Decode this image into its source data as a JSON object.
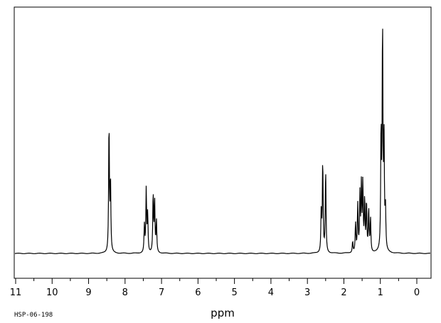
{
  "sample_code": "HSP-06-198",
  "chart_data": {
    "type": "line",
    "xlabel": "ppm",
    "ylabel": "",
    "title": "",
    "x_reversed": true,
    "xlim": [
      11,
      0
    ],
    "ylim": [
      0,
      100
    ],
    "grid": false,
    "legend": "none",
    "tick_labels": [
      "11",
      "10",
      "9",
      "8",
      "7",
      "6",
      "5",
      "4",
      "3",
      "2",
      "1",
      "0"
    ],
    "peaks": [
      {
        "ppm": 8.44,
        "height": 58
      },
      {
        "ppm": 8.4,
        "height": 32
      },
      {
        "ppm": 7.47,
        "height": 12
      },
      {
        "ppm": 7.42,
        "height": 28
      },
      {
        "ppm": 7.38,
        "height": 17
      },
      {
        "ppm": 7.23,
        "height": 26
      },
      {
        "ppm": 7.19,
        "height": 23
      },
      {
        "ppm": 7.14,
        "height": 14
      },
      {
        "ppm": 2.62,
        "height": 19
      },
      {
        "ppm": 2.58,
        "height": 41
      },
      {
        "ppm": 2.5,
        "height": 37
      },
      {
        "ppm": 1.76,
        "height": 5
      },
      {
        "ppm": 1.68,
        "height": 13
      },
      {
        "ppm": 1.62,
        "height": 21
      },
      {
        "ppm": 1.56,
        "height": 25
      },
      {
        "ppm": 1.52,
        "height": 29
      },
      {
        "ppm": 1.48,
        "height": 30
      },
      {
        "ppm": 1.43,
        "height": 23
      },
      {
        "ppm": 1.38,
        "height": 22
      },
      {
        "ppm": 1.32,
        "height": 19
      },
      {
        "ppm": 1.27,
        "height": 15
      },
      {
        "ppm": 0.98,
        "height": 53
      },
      {
        "ppm": 0.94,
        "height": 100
      },
      {
        "ppm": 0.9,
        "height": 50
      },
      {
        "ppm": 0.86,
        "height": 18
      }
    ]
  }
}
